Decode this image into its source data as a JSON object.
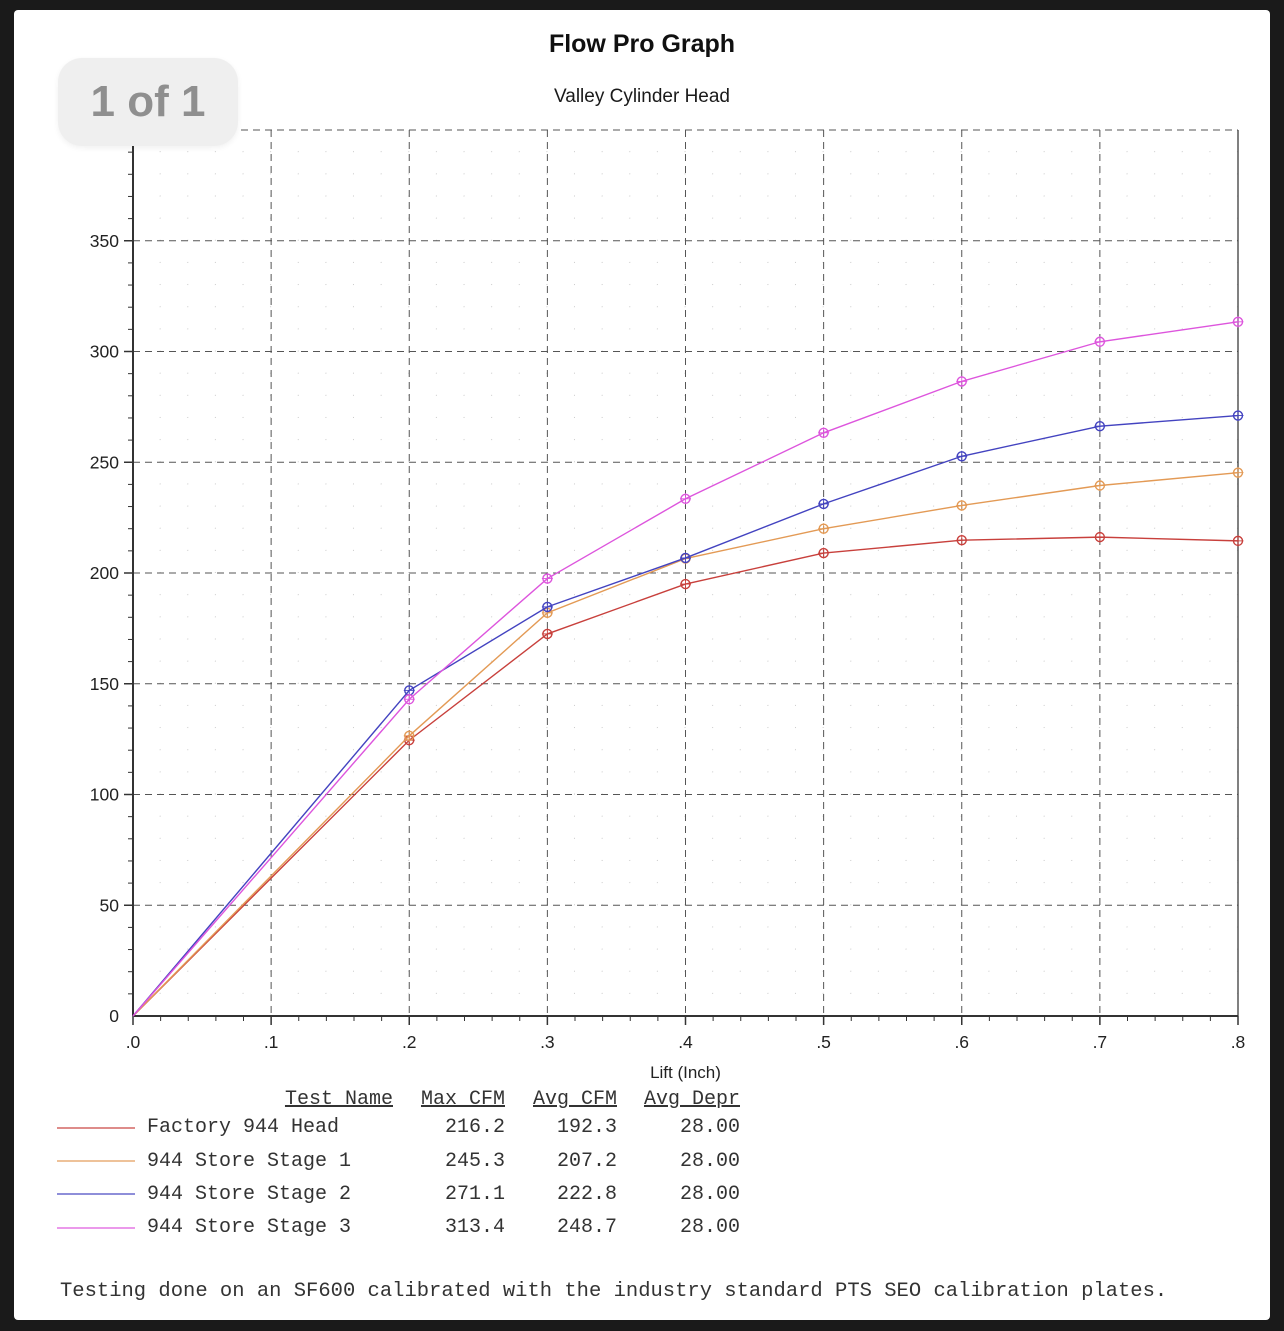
{
  "page_indicator": "1 of 1",
  "header": {
    "title": "Flow Pro Graph",
    "subtitle": "Valley Cylinder Head"
  },
  "chart_data": {
    "type": "line",
    "title": "Flow Pro Graph",
    "subtitle": "Valley Cylinder Head",
    "xlabel": "Lift (Inch)",
    "ylabel": "",
    "xlim": [
      0,
      0.8
    ],
    "ylim": [
      0,
      400
    ],
    "x_tick_labels": [
      ".0",
      ".1",
      ".2",
      ".3",
      ".4",
      ".5",
      ".6",
      ".7",
      ".8"
    ],
    "y_tick_labels": [
      "0",
      "50",
      "100",
      "150",
      "200",
      "250",
      "300",
      "350"
    ],
    "grid": "dashed gridlines every 0.1 x and 50 y, dotted minor grid every 0.02 x and 10 y",
    "legend_position": "table below chart",
    "marker": "open circle with cross",
    "x": [
      0,
      0.2,
      0.3,
      0.4,
      0.5,
      0.6,
      0.7,
      0.8
    ],
    "series": [
      {
        "name": "Factory 944 Head",
        "color": "#c8403c",
        "values": [
          0,
          124.5,
          172.5,
          195.0,
          209.0,
          214.8,
          216.2,
          214.5
        ]
      },
      {
        "name": "944 Store Stage 1",
        "color": "#e39a55",
        "values": [
          0,
          126.5,
          182.0,
          206.5,
          220.0,
          230.5,
          239.5,
          245.3
        ]
      },
      {
        "name": "944 Store Stage 2",
        "color": "#4343c0",
        "values": [
          0,
          147.0,
          184.7,
          206.8,
          231.2,
          252.7,
          266.3,
          271.1
        ]
      },
      {
        "name": "944 Store Stage 3",
        "color": "#dd55dd",
        "values": [
          0,
          143.0,
          197.5,
          233.5,
          263.3,
          286.5,
          304.4,
          313.4
        ]
      }
    ]
  },
  "legend": {
    "headers": [
      "Test Name",
      "Max CFM",
      "Avg CFM",
      "Avg Depr"
    ],
    "rows": [
      {
        "name": "Factory 944 Head",
        "max_cfm": "216.2",
        "avg_cfm": "192.3",
        "avg_depr": "28.00",
        "color": "#c8403c"
      },
      {
        "name": "944 Store Stage 1",
        "max_cfm": "245.3",
        "avg_cfm": "207.2",
        "avg_depr": "28.00",
        "color": "#e39a55"
      },
      {
        "name": "944 Store Stage 2",
        "max_cfm": "271.1",
        "avg_cfm": "222.8",
        "avg_depr": "28.00",
        "color": "#4343c0"
      },
      {
        "name": "944 Store Stage 3",
        "max_cfm": "313.4",
        "avg_cfm": "248.7",
        "avg_depr": "28.00",
        "color": "#dd55dd"
      }
    ]
  },
  "footer": {
    "note": "Testing done on an SF600 calibrated with the industry standard PTS SEO calibration plates."
  }
}
